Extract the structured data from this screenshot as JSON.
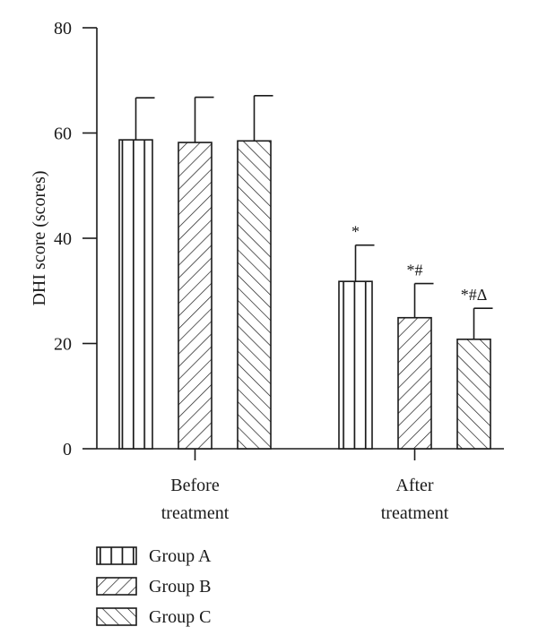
{
  "chart_data": {
    "type": "bar",
    "title": "",
    "xlabel": "",
    "ylabel": "DHI score (scores)",
    "ylim": [
      0,
      80
    ],
    "yticks": [
      0,
      20,
      40,
      60,
      80
    ],
    "categories": [
      {
        "lines": [
          "Before",
          "treatment"
        ]
      },
      {
        "lines": [
          "After",
          "treatment"
        ]
      }
    ],
    "series": [
      {
        "name": "Group A",
        "pattern": "vertical",
        "values": [
          58.7,
          31.8
        ],
        "errors": [
          8.0,
          6.9
        ],
        "annotations": [
          "",
          "*"
        ]
      },
      {
        "name": "Group B",
        "pattern": "diagonal-up",
        "values": [
          58.2,
          24.9
        ],
        "errors": [
          8.6,
          6.5
        ],
        "annotations": [
          "",
          "*#"
        ]
      },
      {
        "name": "Group C",
        "pattern": "diagonal-down",
        "values": [
          58.5,
          20.8
        ],
        "errors": [
          8.6,
          5.9
        ],
        "annotations": [
          "",
          "*#Δ"
        ]
      }
    ],
    "grid": false,
    "legend_position": "bottom-left",
    "colors": {
      "stroke": "#1a1a1a",
      "fill": "#ffffff"
    }
  }
}
